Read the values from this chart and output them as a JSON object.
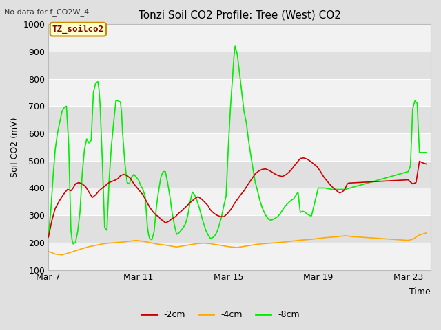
{
  "title": "Tonzi Soil CO2 Profile: Tree (West) CO2",
  "no_data_label": "No data for f_CO2W_4",
  "ylabel": "Soil CO2 (mV)",
  "xlabel": "Time",
  "ylim": [
    100,
    1000
  ],
  "xlim_days": [
    0,
    17
  ],
  "xtick_positions": [
    0,
    4,
    8,
    12,
    16
  ],
  "xtick_labels": [
    "Mar 7",
    "Mar 11",
    "Mar 15",
    "Mar 19",
    "Mar 23"
  ],
  "ytick_positions": [
    100,
    200,
    300,
    400,
    500,
    600,
    700,
    800,
    900,
    1000
  ],
  "legend_label": "TZ_soilco2",
  "legend_box_facecolor": "#ffffcc",
  "legend_box_edgecolor": "#cc8800",
  "fig_bg_color": "#e0e0e0",
  "plot_bg_color": "#f2f2f2",
  "alt_band_color": "#e0e0e0",
  "grid_color": "#ffffff",
  "line_2cm_color": "#cc0000",
  "line_4cm_color": "#ffaa00",
  "line_8cm_color": "#00ee00",
  "line_width": 1.2,
  "series_2cm_x": [
    0.0,
    0.15,
    0.3,
    0.5,
    0.7,
    0.85,
    1.0,
    1.1,
    1.2,
    1.35,
    1.5,
    1.65,
    1.8,
    1.95,
    2.1,
    2.25,
    2.4,
    2.55,
    2.7,
    2.85,
    3.0,
    3.1,
    3.2,
    3.35,
    3.5,
    3.65,
    3.8,
    3.9,
    4.0,
    4.1,
    4.2,
    4.3,
    4.4,
    4.5,
    4.6,
    4.7,
    4.8,
    4.9,
    5.0,
    5.1,
    5.2,
    5.35,
    5.5,
    5.65,
    5.8,
    5.95,
    6.0,
    6.1,
    6.2,
    6.35,
    6.5,
    6.65,
    6.8,
    6.95,
    7.1,
    7.2,
    7.35,
    7.5,
    7.65,
    7.8,
    7.95,
    8.1,
    8.25,
    8.4,
    8.55,
    8.7,
    8.85,
    9.0,
    9.1,
    9.2,
    9.35,
    9.5,
    9.65,
    9.8,
    9.95,
    10.1,
    10.25,
    10.4,
    10.55,
    10.7,
    10.85,
    11.0,
    11.1,
    11.2,
    11.35,
    11.5,
    11.65,
    11.8,
    11.95,
    12.1,
    12.25,
    12.4,
    12.55,
    12.7,
    12.85,
    12.95,
    13.05,
    13.1,
    13.15,
    13.2,
    13.25,
    13.3,
    13.35,
    16.0,
    16.1,
    16.2,
    16.35,
    16.5,
    16.65,
    16.8
  ],
  "series_2cm_y": [
    220,
    280,
    325,
    355,
    380,
    395,
    390,
    400,
    415,
    420,
    415,
    405,
    385,
    365,
    375,
    390,
    400,
    410,
    420,
    425,
    430,
    435,
    445,
    450,
    445,
    435,
    415,
    405,
    395,
    385,
    375,
    360,
    345,
    330,
    318,
    308,
    300,
    295,
    285,
    280,
    272,
    278,
    288,
    295,
    308,
    318,
    323,
    330,
    338,
    350,
    360,
    368,
    360,
    348,
    335,
    320,
    308,
    300,
    295,
    295,
    305,
    320,
    340,
    358,
    375,
    390,
    410,
    428,
    440,
    452,
    462,
    468,
    470,
    465,
    458,
    450,
    445,
    442,
    448,
    458,
    472,
    488,
    498,
    508,
    510,
    506,
    498,
    488,
    478,
    460,
    440,
    425,
    410,
    398,
    388,
    382,
    385,
    388,
    392,
    398,
    408,
    415,
    418,
    430,
    422,
    415,
    420,
    498,
    492,
    488
  ],
  "series_4cm_x": [
    0.0,
    0.3,
    0.6,
    0.9,
    1.2,
    1.5,
    1.8,
    2.1,
    2.4,
    2.7,
    3.0,
    3.3,
    3.6,
    3.9,
    4.2,
    4.5,
    4.8,
    5.1,
    5.4,
    5.7,
    6.0,
    6.3,
    6.6,
    6.9,
    7.2,
    7.5,
    7.8,
    8.1,
    8.4,
    8.7,
    9.0,
    9.3,
    9.6,
    9.9,
    10.2,
    10.5,
    10.8,
    11.1,
    11.4,
    11.7,
    12.0,
    12.3,
    12.6,
    12.9,
    13.2,
    13.5,
    16.0,
    16.2,
    16.5,
    16.8
  ],
  "series_4cm_y": [
    168,
    158,
    155,
    162,
    170,
    178,
    185,
    190,
    195,
    198,
    200,
    202,
    205,
    208,
    205,
    200,
    195,
    192,
    188,
    184,
    188,
    192,
    196,
    198,
    196,
    192,
    188,
    184,
    182,
    186,
    190,
    194,
    196,
    198,
    200,
    202,
    205,
    208,
    210,
    212,
    215,
    218,
    220,
    222,
    225,
    222,
    208,
    212,
    228,
    235
  ],
  "series_8cm_x": [
    0.0,
    0.1,
    0.2,
    0.3,
    0.4,
    0.5,
    0.6,
    0.7,
    0.8,
    0.9,
    1.0,
    1.05,
    1.1,
    1.2,
    1.3,
    1.4,
    1.5,
    1.6,
    1.7,
    1.8,
    1.9,
    2.0,
    2.1,
    2.2,
    2.25,
    2.3,
    2.4,
    2.5,
    2.6,
    2.7,
    2.8,
    2.9,
    3.0,
    3.1,
    3.2,
    3.25,
    3.3,
    3.4,
    3.5,
    3.6,
    3.7,
    3.8,
    3.9,
    4.0,
    4.05,
    4.1,
    4.2,
    4.3,
    4.4,
    4.45,
    4.5,
    4.6,
    4.7,
    4.8,
    4.9,
    5.0,
    5.1,
    5.2,
    5.3,
    5.4,
    5.5,
    5.6,
    5.7,
    5.8,
    5.9,
    6.0,
    6.1,
    6.2,
    6.3,
    6.4,
    6.5,
    6.6,
    6.7,
    6.8,
    6.9,
    7.0,
    7.1,
    7.2,
    7.3,
    7.4,
    7.5,
    7.6,
    7.7,
    7.8,
    7.9,
    8.0,
    8.1,
    8.2,
    8.25,
    8.3,
    8.4,
    8.5,
    8.6,
    8.7,
    8.8,
    8.9,
    9.0,
    9.1,
    9.2,
    9.3,
    9.4,
    9.5,
    9.6,
    9.7,
    9.8,
    9.9,
    10.0,
    10.1,
    10.2,
    10.3,
    10.4,
    10.5,
    10.6,
    10.7,
    10.8,
    10.9,
    11.0,
    11.1,
    11.2,
    11.3,
    11.4,
    11.5,
    11.6,
    11.65,
    11.7,
    12.0,
    12.3,
    12.6,
    12.9,
    13.2,
    16.0,
    16.1,
    16.2,
    16.3,
    16.4,
    16.5,
    16.6,
    16.7,
    16.8
  ],
  "series_8cm_y": [
    228,
    310,
    435,
    540,
    600,
    640,
    680,
    695,
    700,
    560,
    245,
    210,
    195,
    200,
    240,
    310,
    450,
    540,
    580,
    565,
    575,
    750,
    785,
    790,
    760,
    700,
    490,
    255,
    245,
    430,
    555,
    640,
    720,
    720,
    715,
    680,
    600,
    490,
    420,
    415,
    440,
    450,
    440,
    430,
    420,
    410,
    395,
    370,
    260,
    230,
    215,
    210,
    240,
    330,
    390,
    440,
    460,
    460,
    420,
    370,
    310,
    265,
    230,
    235,
    245,
    255,
    270,
    300,
    348,
    385,
    375,
    355,
    330,
    300,
    270,
    245,
    228,
    215,
    218,
    225,
    240,
    265,
    295,
    335,
    370,
    550,
    700,
    820,
    880,
    920,
    890,
    820,
    750,
    680,
    640,
    575,
    520,
    468,
    420,
    390,
    355,
    330,
    310,
    295,
    285,
    282,
    285,
    290,
    295,
    305,
    318,
    330,
    340,
    348,
    355,
    360,
    372,
    385,
    310,
    315,
    312,
    305,
    300,
    298,
    298,
    400,
    400,
    395,
    395,
    395,
    460,
    480,
    690,
    720,
    710,
    530,
    530,
    530,
    530
  ]
}
